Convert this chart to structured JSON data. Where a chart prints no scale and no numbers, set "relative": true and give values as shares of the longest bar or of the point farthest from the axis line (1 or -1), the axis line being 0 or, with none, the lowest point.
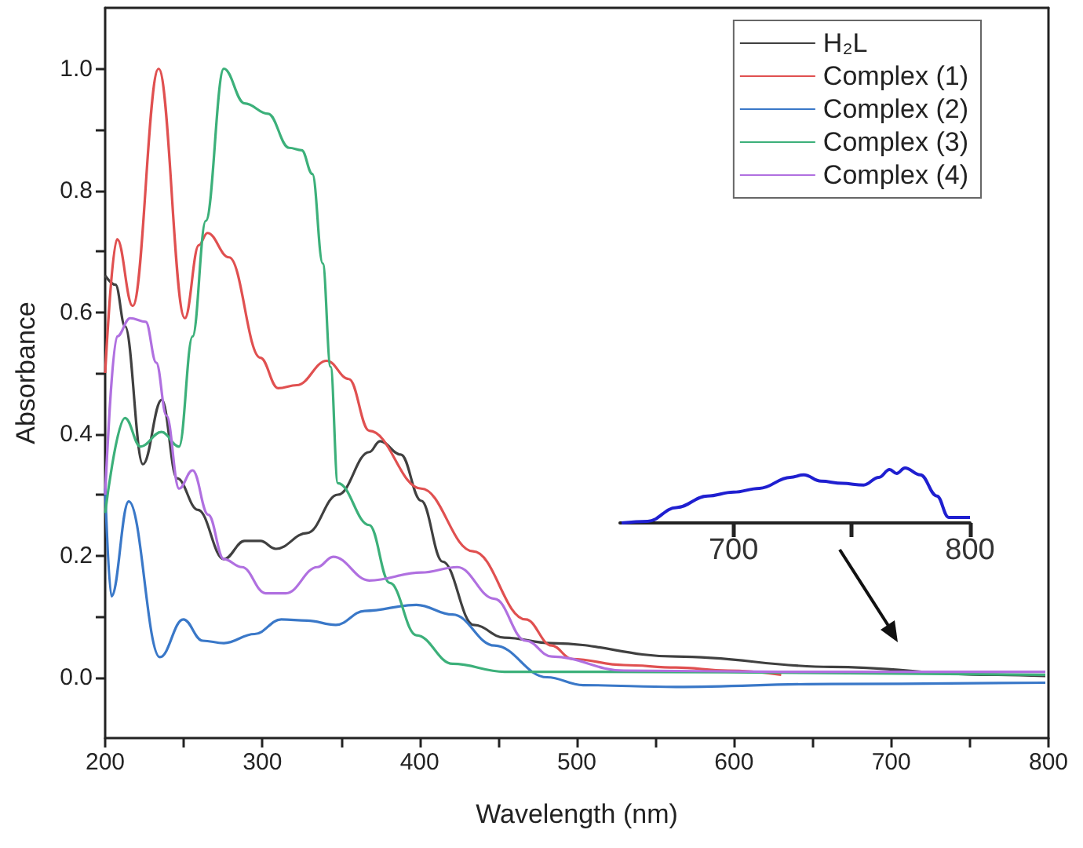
{
  "chart_data": [
    {
      "type": "line",
      "xlabel": "Wavelength (nm)",
      "ylabel": "Absorbance",
      "xlim": [
        200,
        800
      ],
      "xticks": [
        200,
        {
          "value": 250,
          "label": null
        },
        300,
        {
          "value": 350,
          "label": null
        },
        400,
        {
          "value": 450,
          "label": null
        },
        500,
        {
          "value": 550,
          "label": null
        },
        600,
        {
          "value": 650,
          "label": null
        },
        700,
        {
          "value": 750,
          "label": null
        },
        800
      ],
      "ylim": [
        -0.1,
        1.1
      ],
      "yticks": [
        {
          "value": 0,
          "label": "0.0"
        },
        {
          "value": 0.1,
          "label": null
        },
        0.2,
        {
          "value": 0.3,
          "label": null
        },
        0.4,
        {
          "value": 0.5,
          "label": null
        },
        0.6,
        {
          "value": 0.7,
          "label": null
        },
        0.8,
        {
          "value": 0.9,
          "label": null
        },
        {
          "value": 1,
          "label": "1.0"
        }
      ],
      "grid": false,
      "legend": "top right",
      "line_style": "solid",
      "series": [
        {
          "name": "H₂L",
          "color": "#404040",
          "x": [
            200,
            206.6,
            212.6,
            224,
            236,
            245.7,
            259,
            275.5,
            288.7,
            298.7,
            308.6,
            328.5,
            348,
            368,
            374.8,
            388,
            401,
            414.6,
            434.4,
            454,
            484,
            563,
            662,
            762,
            798
          ],
          "values": [
            0.66,
            0.645,
            0.577,
            0.35,
            0.456,
            0.327,
            0.275,
            0.194,
            0.224,
            0.224,
            0.211,
            0.237,
            0.3,
            0.37,
            0.388,
            0.366,
            0.29,
            0.19,
            0.086,
            0.065,
            0.056,
            0.034,
            0.017,
            0.004,
            0.002
          ]
        },
        {
          "name": "Complex (1)",
          "color": "#e05050",
          "x": [
            200,
            207.6,
            217.5,
            234,
            250.7,
            259.6,
            265,
            278.8,
            298.7,
            310,
            321.9,
            341,
            355,
            368,
            401,
            434,
            467.5,
            484,
            497,
            530,
            563,
            596,
            630
          ],
          "values": [
            0.5,
            0.72,
            0.61,
            1.0,
            0.59,
            0.71,
            0.73,
            0.69,
            0.525,
            0.475,
            0.48,
            0.52,
            0.49,
            0.405,
            0.31,
            0.207,
            0.095,
            0.052,
            0.03,
            0.02,
            0.016,
            0.011,
            0.004
          ]
        },
        {
          "name": "Complex (2)",
          "color": "#3a78c8",
          "x": [
            200,
            204,
            215,
            234.8,
            249.7,
            262,
            275.5,
            295,
            312,
            328.5,
            346.7,
            365,
            398,
            421,
            447.6,
            481,
            504,
            563,
            662,
            798
          ],
          "values": [
            0.31,
            0.133,
            0.289,
            0.033,
            0.095,
            0.06,
            0.056,
            0.071,
            0.095,
            0.093,
            0.086,
            0.109,
            0.119,
            0.103,
            0.052,
            0.0,
            -0.013,
            -0.016,
            -0.011,
            -0.009
          ]
        },
        {
          "name": "Complex (3)",
          "color": "#3cb07a",
          "x": [
            200,
            212.6,
            222.5,
            235.8,
            247,
            255.6,
            264,
            275.5,
            288.7,
            303.6,
            317,
            325,
            331.8,
            338.4,
            343.4,
            348,
            368,
            381,
            398,
            421,
            454,
            497,
            798
          ],
          "values": [
            0.27,
            0.426,
            0.379,
            0.403,
            0.379,
            0.56,
            0.75,
            1.0,
            0.943,
            0.926,
            0.87,
            0.866,
            0.827,
            0.68,
            0.51,
            0.319,
            0.25,
            0.155,
            0.069,
            0.022,
            0.009,
            0.009,
            0.004
          ]
        },
        {
          "name": "Complex (4)",
          "color": "#b070e0",
          "x": [
            200,
            207.6,
            215.9,
            225.8,
            232.5,
            239,
            247,
            255.6,
            265.6,
            275.5,
            287,
            302,
            315,
            335,
            345,
            368,
            401,
            424,
            447.6,
            467.5,
            484,
            530,
            629,
            798
          ],
          "values": [
            0.3,
            0.56,
            0.59,
            0.584,
            0.517,
            0.43,
            0.31,
            0.34,
            0.267,
            0.194,
            0.181,
            0.138,
            0.138,
            0.181,
            0.198,
            0.159,
            0.172,
            0.181,
            0.129,
            0.06,
            0.034,
            0.011,
            0.009,
            0.009
          ]
        }
      ]
    },
    {
      "type": "line",
      "relative": true,
      "xlim": [
        652,
        800
      ],
      "xticks": [
        700,
        {
          "value": 750,
          "label": null
        },
        800
      ],
      "tick_labels": "x",
      "grid": false,
      "line_style": "solid",
      "series": [
        {
          "color": "#1f1fd0",
          "x": [
            652.7,
            663.7,
            675.8,
            689,
            700,
            711,
            724,
            729.7,
            737,
            746,
            755,
            761.5,
            766,
            769,
            772.5,
            779,
            786,
            791,
            800
          ],
          "values": [
            0,
            0.03,
            0.28,
            0.49,
            0.56,
            0.63,
            0.83,
            0.875,
            0.76,
            0.72,
            0.69,
            0.83,
            0.97,
            0.9,
            1,
            0.875,
            0.49,
            0.1,
            0.1
          ]
        }
      ]
    }
  ]
}
